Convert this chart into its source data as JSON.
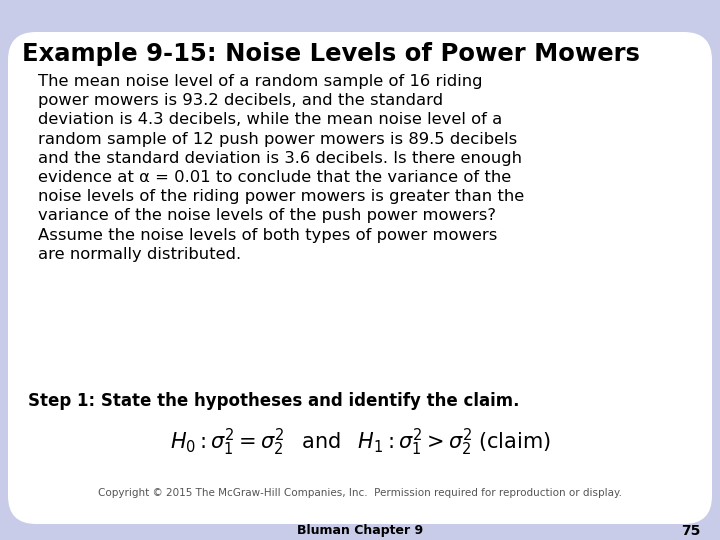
{
  "title": "Example 9-15: Noise Levels of Power Mowers",
  "body_text": "The mean noise level of a random sample of 16 riding\npower mowers is 93.2 decibels, and the standard\ndeviation is 4.3 decibels, while the mean noise level of a\nrandom sample of 12 push power mowers is 89.5 decibels\nand the standard deviation is 3.6 decibels. Is there enough\nevidence at α = 0.01 to conclude that the variance of the\nnoise levels of the riding power mowers is greater than the\nvariance of the noise levels of the push power mowers?\nAssume the noise levels of both types of power mowers\nare normally distributed.",
  "step_text": "Step 1: State the hypotheses and identify the claim.",
  "copyright_text": "Copyright © 2015 The McGraw-Hill Companies, Inc.  Permission required for reproduction or display.",
  "footer_text": "Bluman Chapter 9",
  "page_number": "75",
  "bg_outer": "#c8cce8",
  "bg_card": "#ffffff",
  "title_color": "#000000",
  "body_color": "#000000",
  "step_color": "#000000",
  "title_fontsize": 17.5,
  "body_fontsize": 11.8,
  "step_fontsize": 12.0,
  "formula_fontsize": 13,
  "copyright_fontsize": 7.5,
  "footer_fontsize": 9
}
